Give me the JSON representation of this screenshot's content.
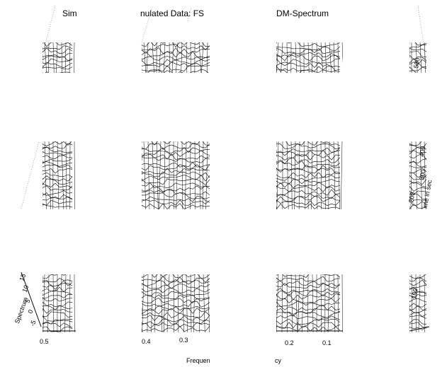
{
  "title_fragments": [
    "Sim",
    "nulated Data: FS",
    "DM-Spectrum"
  ],
  "time_axis": {
    "label": "ime in sec",
    "ticks": [
      500,
      400,
      300,
      200,
      100
    ]
  },
  "spectrum_axis": {
    "label": "Spectrum",
    "ticks": [
      15,
      10,
      5,
      0,
      -5
    ]
  },
  "frequency_axis": {
    "label_fragments": [
      "Frequen",
      "cy"
    ],
    "ticks": [
      0.5,
      0.4,
      0.3,
      0.2,
      0.1
    ]
  }
}
